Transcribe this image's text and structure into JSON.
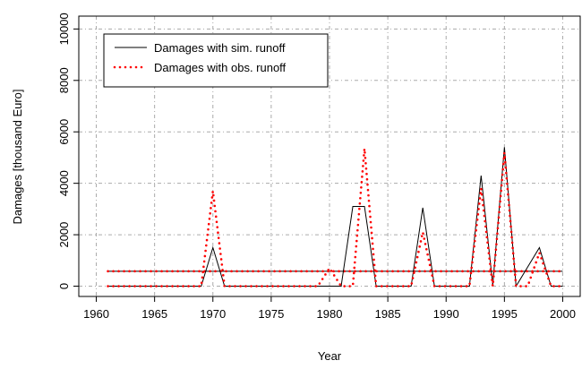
{
  "chart_data": {
    "type": "line",
    "xlabel": "Year",
    "ylabel": "Damages [thousand Euro]",
    "x": [
      1961,
      1962,
      1963,
      1964,
      1965,
      1966,
      1967,
      1968,
      1969,
      1970,
      1971,
      1972,
      1973,
      1974,
      1975,
      1976,
      1977,
      1978,
      1979,
      1980,
      1981,
      1982,
      1983,
      1984,
      1985,
      1986,
      1987,
      1988,
      1989,
      1990,
      1991,
      1992,
      1993,
      1994,
      1995,
      1996,
      1997,
      1998,
      1999,
      2000
    ],
    "series": [
      {
        "name": "Damages with sim. runoff",
        "color": "#000000",
        "style": "solid",
        "values": [
          0,
          0,
          0,
          0,
          0,
          0,
          0,
          0,
          0,
          1500,
          0,
          0,
          0,
          0,
          0,
          0,
          0,
          0,
          0,
          0,
          0,
          3100,
          3100,
          0,
          0,
          0,
          0,
          3050,
          0,
          0,
          0,
          0,
          4300,
          50,
          5400,
          0,
          750,
          1500,
          0,
          0
        ]
      },
      {
        "name": "Damages with obs. runoff",
        "color": "#ff0000",
        "style": "dotted",
        "values": [
          0,
          0,
          0,
          0,
          0,
          0,
          0,
          0,
          0,
          3700,
          0,
          0,
          0,
          0,
          0,
          0,
          0,
          0,
          0,
          700,
          0,
          0,
          5350,
          0,
          0,
          0,
          0,
          2100,
          0,
          0,
          0,
          0,
          3800,
          0,
          5200,
          0,
          0,
          1300,
          0,
          0
        ]
      }
    ],
    "hlines": [
      {
        "value": 580,
        "color": "#000000",
        "style": "solid"
      },
      {
        "value": 580,
        "color": "#ff0000",
        "style": "dotted"
      }
    ],
    "xlim": [
      1958.5,
      2001.5
    ],
    "xticks": [
      1960,
      1965,
      1970,
      1975,
      1980,
      1985,
      1990,
      1995,
      2000
    ],
    "ylim": [
      -400,
      10500
    ],
    "yticks": [
      0,
      2000,
      4000,
      6000,
      8000,
      10000
    ],
    "grid": true,
    "legend": "topleft"
  }
}
